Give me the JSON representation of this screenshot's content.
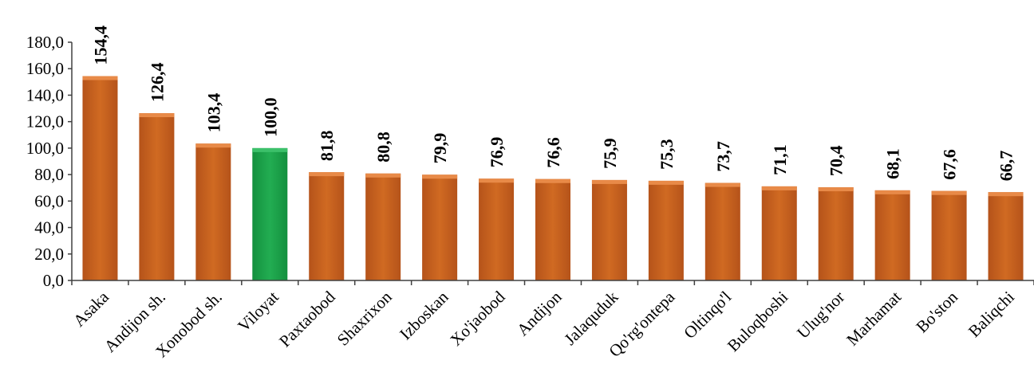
{
  "chart_data": {
    "type": "bar",
    "categories": [
      "Asaka",
      "Andijon  sh.",
      "Xonobod  sh.",
      "Viloyat",
      "Paxtaobod",
      "Shaxrixon",
      "Izboskan",
      "Xo'jaobod",
      "Andijon",
      "Jalaquduk",
      "Qo'rg'ontepa",
      "Oltinqo'l",
      "Buloqboshi",
      "Ulug'nor",
      "Marhamat",
      "Bo'ston",
      "Baliqchi"
    ],
    "values": [
      154.4,
      126.4,
      103.4,
      100.0,
      81.8,
      80.8,
      79.9,
      76.9,
      76.6,
      75.9,
      75.3,
      73.7,
      71.1,
      70.4,
      68.1,
      67.6,
      66.7
    ],
    "data_labels": [
      "154,4",
      "126,4",
      "103,4",
      "100,0",
      "81,8",
      "80,8",
      "79,9",
      "76,9",
      "76,6",
      "75,9",
      "75,3",
      "73,7",
      "71,1",
      "70,4",
      "68,1",
      "67,6",
      "66,7"
    ],
    "title": "",
    "xlabel": "",
    "ylabel": "",
    "ylim": [
      0,
      180
    ],
    "yticks": [
      0,
      20,
      40,
      60,
      80,
      100,
      120,
      140,
      160,
      180
    ],
    "ytick_labels": [
      "0,0",
      "20,0",
      "40,0",
      "60,0",
      "80,0",
      "100,0",
      "120,0",
      "140,0",
      "160,0",
      "180,0"
    ],
    "grid": false,
    "legend": "none",
    "colors": {
      "default_bar": "#C8601A",
      "default_bar_top": "#E88A48",
      "highlight_bar": "#1EA34A",
      "highlight_bar_top": "#3CC06A"
    },
    "highlight_category": "Viloyat"
  }
}
